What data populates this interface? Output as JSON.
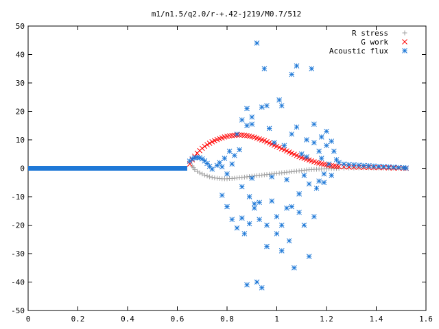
{
  "chart_data": {
    "type": "scatter",
    "title": "m1/n1.5/q2.0/r-+.42-j219/M0.7/512",
    "xlabel": "",
    "ylabel": "",
    "xlim": [
      0,
      1.6
    ],
    "ylim": [
      -50,
      50
    ],
    "x_ticks": [
      "0",
      "0.2",
      "0.4",
      "0.6",
      "0.8",
      "1",
      "1.2",
      "1.4",
      "1.6"
    ],
    "y_ticks": [
      "50",
      "40",
      "30",
      "20",
      "10",
      "0",
      "-10",
      "-20",
      "-30",
      "-40",
      "-50"
    ],
    "grid": false,
    "legend_position": "top-right",
    "series": [
      {
        "name": "R stress",
        "marker": "plus",
        "color": "#a0a0a0",
        "points": [
          [
            0.66,
            0.8
          ],
          [
            0.665,
            0.2
          ],
          [
            0.67,
            -0.5
          ],
          [
            0.68,
            -1.1
          ],
          [
            0.69,
            -1.6
          ],
          [
            0.7,
            -2.0
          ],
          [
            0.71,
            -2.4
          ],
          [
            0.72,
            -2.7
          ],
          [
            0.73,
            -3.0
          ],
          [
            0.74,
            -3.2
          ],
          [
            0.75,
            -3.4
          ],
          [
            0.76,
            -3.5
          ],
          [
            0.77,
            -3.6
          ],
          [
            0.78,
            -3.7
          ],
          [
            0.79,
            -3.7
          ],
          [
            0.8,
            -3.7
          ],
          [
            0.81,
            -3.6
          ],
          [
            0.82,
            -3.6
          ],
          [
            0.83,
            -3.5
          ],
          [
            0.84,
            -3.4
          ],
          [
            0.85,
            -3.3
          ],
          [
            0.86,
            -3.2
          ],
          [
            0.87,
            -3.1
          ],
          [
            0.88,
            -3.0
          ],
          [
            0.89,
            -2.9
          ],
          [
            0.9,
            -2.8
          ],
          [
            0.91,
            -2.7
          ],
          [
            0.92,
            -2.6
          ],
          [
            0.93,
            -2.5
          ],
          [
            0.94,
            -2.4
          ],
          [
            0.95,
            -2.3
          ],
          [
            0.96,
            -2.2
          ],
          [
            0.97,
            -2.1
          ],
          [
            0.98,
            -2.0
          ],
          [
            0.99,
            -1.9
          ],
          [
            1.0,
            -1.8
          ],
          [
            1.01,
            -1.7
          ],
          [
            1.02,
            -1.6
          ],
          [
            1.03,
            -1.5
          ],
          [
            1.04,
            -1.4
          ],
          [
            1.05,
            -1.3
          ],
          [
            1.06,
            -1.2
          ],
          [
            1.07,
            -1.1
          ],
          [
            1.08,
            -1.0
          ],
          [
            1.09,
            -0.9
          ],
          [
            1.1,
            -0.8
          ],
          [
            1.11,
            -0.7
          ],
          [
            1.12,
            -0.6
          ],
          [
            1.13,
            -0.5
          ],
          [
            1.14,
            -0.45
          ],
          [
            1.15,
            -0.4
          ],
          [
            1.16,
            -0.35
          ],
          [
            1.17,
            -0.3
          ],
          [
            1.18,
            -0.25
          ],
          [
            1.19,
            -0.2
          ],
          [
            1.2,
            -0.15
          ],
          [
            1.21,
            -0.1
          ],
          [
            1.22,
            -0.08
          ],
          [
            1.23,
            -0.05
          ],
          [
            1.24,
            -0.03
          ],
          [
            1.25,
            0.0
          ],
          [
            1.27,
            0.05
          ],
          [
            1.29,
            0.08
          ],
          [
            1.31,
            0.1
          ],
          [
            1.33,
            0.12
          ],
          [
            1.35,
            0.12
          ],
          [
            1.37,
            0.12
          ],
          [
            1.39,
            0.1
          ],
          [
            1.41,
            0.1
          ],
          [
            1.43,
            0.08
          ],
          [
            1.45,
            0.06
          ],
          [
            1.47,
            0.05
          ],
          [
            1.49,
            0.03
          ],
          [
            1.51,
            0.02
          ],
          [
            1.52,
            0.0
          ]
        ]
      },
      {
        "name": "G work",
        "marker": "cross",
        "color": "#ff0000",
        "points": [
          [
            0.65,
            1.5
          ],
          [
            0.66,
            3.0
          ],
          [
            0.67,
            4.2
          ],
          [
            0.68,
            5.3
          ],
          [
            0.69,
            6.2
          ],
          [
            0.7,
            7.0
          ],
          [
            0.71,
            7.7
          ],
          [
            0.72,
            8.3
          ],
          [
            0.73,
            8.8
          ],
          [
            0.74,
            9.3
          ],
          [
            0.75,
            9.7
          ],
          [
            0.76,
            10.1
          ],
          [
            0.77,
            10.4
          ],
          [
            0.78,
            10.7
          ],
          [
            0.79,
            11.0
          ],
          [
            0.8,
            11.2
          ],
          [
            0.81,
            11.4
          ],
          [
            0.82,
            11.5
          ],
          [
            0.83,
            11.6
          ],
          [
            0.84,
            11.7
          ],
          [
            0.85,
            11.7
          ],
          [
            0.86,
            11.7
          ],
          [
            0.87,
            11.6
          ],
          [
            0.88,
            11.5
          ],
          [
            0.89,
            11.3
          ],
          [
            0.9,
            11.1
          ],
          [
            0.91,
            10.9
          ],
          [
            0.92,
            10.6
          ],
          [
            0.93,
            10.3
          ],
          [
            0.94,
            10.0
          ],
          [
            0.95,
            9.7
          ],
          [
            0.96,
            9.3
          ],
          [
            0.97,
            8.9
          ],
          [
            0.98,
            8.5
          ],
          [
            0.99,
            8.1
          ],
          [
            1.0,
            7.7
          ],
          [
            1.01,
            7.3
          ],
          [
            1.02,
            6.9
          ],
          [
            1.03,
            6.5
          ],
          [
            1.04,
            6.1
          ],
          [
            1.05,
            5.7
          ],
          [
            1.06,
            5.3
          ],
          [
            1.07,
            4.9
          ],
          [
            1.08,
            4.5
          ],
          [
            1.09,
            4.1
          ],
          [
            1.1,
            3.8
          ],
          [
            1.11,
            3.5
          ],
          [
            1.12,
            3.2
          ],
          [
            1.13,
            2.9
          ],
          [
            1.14,
            2.6
          ],
          [
            1.15,
            2.3
          ],
          [
            1.16,
            2.0
          ],
          [
            1.17,
            1.8
          ],
          [
            1.18,
            1.6
          ],
          [
            1.19,
            1.4
          ],
          [
            1.2,
            1.2
          ],
          [
            1.21,
            1.0
          ],
          [
            1.22,
            0.9
          ],
          [
            1.23,
            0.8
          ],
          [
            1.24,
            0.7
          ],
          [
            1.25,
            0.6
          ],
          [
            1.27,
            0.5
          ],
          [
            1.29,
            0.45
          ],
          [
            1.31,
            0.4
          ],
          [
            1.33,
            0.35
          ],
          [
            1.35,
            0.3
          ],
          [
            1.37,
            0.3
          ],
          [
            1.39,
            0.25
          ],
          [
            1.41,
            0.2
          ],
          [
            1.43,
            0.2
          ],
          [
            1.45,
            0.15
          ],
          [
            1.47,
            0.1
          ],
          [
            1.49,
            0.1
          ],
          [
            1.51,
            0.05
          ],
          [
            1.52,
            0.0
          ]
        ]
      },
      {
        "name": "Acoustic flux",
        "marker": "star",
        "color": "#1e78d7",
        "baseline": {
          "x_start": 0.0,
          "x_end": 0.64,
          "y": 0
        },
        "points": [
          [
            0.65,
            2.5
          ],
          [
            0.66,
            3.3
          ],
          [
            0.67,
            3.7
          ],
          [
            0.68,
            3.8
          ],
          [
            0.69,
            3.7
          ],
          [
            0.7,
            3.3
          ],
          [
            0.71,
            2.6
          ],
          [
            0.72,
            1.7
          ],
          [
            0.73,
            0.7
          ],
          [
            0.74,
            -0.3
          ],
          [
            0.76,
            1.0
          ],
          [
            0.77,
            2.0
          ],
          [
            0.78,
            0.5
          ],
          [
            0.79,
            3.5
          ],
          [
            0.8,
            -2.0
          ],
          [
            0.81,
            6.0
          ],
          [
            0.82,
            1.5
          ],
          [
            0.83,
            4.5
          ],
          [
            0.84,
            12.0
          ],
          [
            0.85,
            6.5
          ],
          [
            0.86,
            -6.5
          ],
          [
            0.87,
            -23.0
          ],
          [
            0.88,
            21.0
          ],
          [
            0.89,
            -10.0
          ],
          [
            0.9,
            18.0
          ],
          [
            0.91,
            -14.0
          ],
          [
            0.92,
            44.0
          ],
          [
            0.93,
            -12.0
          ],
          [
            0.94,
            21.5
          ],
          [
            0.95,
            35.0
          ],
          [
            0.96,
            -27.5
          ],
          [
            0.97,
            14.0
          ],
          [
            0.98,
            -3.0
          ],
          [
            0.99,
            9.0
          ],
          [
            1.0,
            -23.0
          ],
          [
            1.01,
            24.0
          ],
          [
            1.02,
            -20.0
          ],
          [
            1.03,
            8.0
          ],
          [
            1.04,
            -14.0
          ],
          [
            1.05,
            -25.5
          ],
          [
            1.06,
            12.0
          ],
          [
            1.07,
            -35.0
          ],
          [
            1.08,
            36.0
          ],
          [
            1.09,
            -9.0
          ],
          [
            1.1,
            5.0
          ],
          [
            1.11,
            -20.0
          ],
          [
            1.12,
            4.0
          ],
          [
            1.13,
            -31.0
          ],
          [
            1.14,
            35.0
          ],
          [
            1.15,
            9.0
          ],
          [
            1.16,
            -7.0
          ],
          [
            1.17,
            6.0
          ],
          [
            1.18,
            3.5
          ],
          [
            1.19,
            -2.0
          ],
          [
            1.2,
            8.0
          ],
          [
            1.21,
            1.5
          ],
          [
            1.22,
            -2.5
          ],
          [
            1.23,
            6.0
          ],
          [
            1.24,
            3.0
          ],
          [
            1.25,
            2.0
          ],
          [
            1.27,
            1.5
          ],
          [
            1.29,
            1.3
          ],
          [
            1.31,
            1.2
          ],
          [
            1.33,
            1.1
          ],
          [
            1.35,
            1.0
          ],
          [
            1.37,
            0.9
          ],
          [
            1.39,
            0.8
          ],
          [
            1.41,
            0.7
          ],
          [
            1.43,
            0.6
          ],
          [
            1.45,
            0.5
          ],
          [
            1.47,
            0.4
          ],
          [
            1.49,
            0.3
          ],
          [
            1.51,
            0.2
          ],
          [
            1.52,
            0.1
          ],
          [
            0.78,
            -9.5
          ],
          [
            0.8,
            -13.5
          ],
          [
            0.82,
            -18.0
          ],
          [
            0.84,
            -21.0
          ],
          [
            0.86,
            -17.5
          ],
          [
            0.88,
            -41.0
          ],
          [
            0.89,
            -19.5
          ],
          [
            0.9,
            -3.5
          ],
          [
            0.91,
            -12.5
          ],
          [
            0.92,
            -40.0
          ],
          [
            0.93,
            -18.0
          ],
          [
            0.94,
            -42.0
          ],
          [
            0.96,
            -20.0
          ],
          [
            0.98,
            -11.5
          ],
          [
            1.0,
            -17.0
          ],
          [
            1.02,
            -29.0
          ],
          [
            1.04,
            -4.0
          ],
          [
            1.06,
            -13.5
          ],
          [
            1.09,
            -15.5
          ],
          [
            1.11,
            -2.5
          ],
          [
            1.13,
            -5.5
          ],
          [
            1.15,
            -17.0
          ],
          [
            1.17,
            -4.5
          ],
          [
            1.19,
            -5.0
          ],
          [
            0.86,
            17.0
          ],
          [
            0.88,
            15.0
          ],
          [
            0.9,
            15.5
          ],
          [
            0.96,
            22.0
          ],
          [
            1.02,
            22.0
          ],
          [
            1.06,
            33.0
          ],
          [
            1.08,
            14.5
          ],
          [
            1.12,
            10.0
          ],
          [
            1.15,
            15.5
          ],
          [
            1.18,
            11.0
          ],
          [
            1.2,
            13.0
          ],
          [
            1.22,
            9.5
          ]
        ]
      }
    ]
  }
}
